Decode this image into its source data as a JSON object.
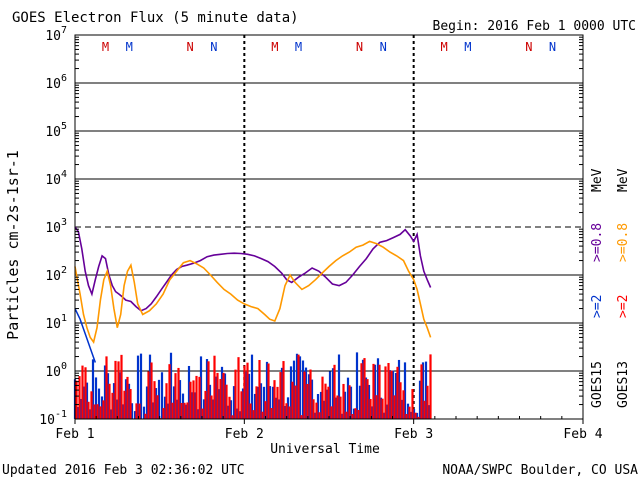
{
  "chart_data": {
    "type": "line",
    "title": "GOES Electron Flux (5 minute data)",
    "begin_label": "Begin: 2016 Feb 1 0000 UTC",
    "ylabel": "Particles cm-2s-1sr-1",
    "xlabel": "Universal Time",
    "updated_label": "Updated 2016 Feb  3 02:36:02 UTC",
    "source_label": "NOAA/SWPC Boulder, CO USA",
    "x_unit": "days since 2016 Feb 1 00:00 UTC",
    "xlim": [
      0,
      3
    ],
    "ylim_log10": [
      -1,
      7
    ],
    "x_ticks": [
      {
        "x": 0,
        "label": "Feb 1"
      },
      {
        "x": 1,
        "label": "Feb 2"
      },
      {
        "x": 2,
        "label": "Feb 3"
      },
      {
        "x": 3,
        "label": "Feb 4"
      }
    ],
    "y_ticks": [
      {
        "exp": -1,
        "base": "10",
        "sup": "-1"
      },
      {
        "exp": 0,
        "base": "10",
        "sup": "0"
      },
      {
        "exp": 1,
        "base": "10",
        "sup": "1"
      },
      {
        "exp": 2,
        "base": "10",
        "sup": "2"
      },
      {
        "exp": 3,
        "base": "10",
        "sup": "3"
      },
      {
        "exp": 4,
        "base": "10",
        "sup": "4"
      },
      {
        "exp": 5,
        "base": "10",
        "sup": "5"
      },
      {
        "exp": 6,
        "base": "10",
        "sup": "6"
      },
      {
        "exp": 7,
        "base": "10",
        "sup": "7"
      }
    ],
    "threshold_log10": 3,
    "markers": [
      {
        "x": 0.18,
        "label": "M",
        "color": "#cc0000"
      },
      {
        "x": 0.32,
        "label": "M",
        "color": "#0033cc"
      },
      {
        "x": 0.68,
        "label": "N",
        "color": "#cc0000"
      },
      {
        "x": 0.82,
        "label": "N",
        "color": "#0033cc"
      },
      {
        "x": 1.18,
        "label": "M",
        "color": "#cc0000"
      },
      {
        "x": 1.32,
        "label": "M",
        "color": "#0033cc"
      },
      {
        "x": 1.68,
        "label": "N",
        "color": "#cc0000"
      },
      {
        "x": 1.82,
        "label": "N",
        "color": "#0033cc"
      },
      {
        "x": 2.18,
        "label": "M",
        "color": "#cc0000"
      },
      {
        "x": 2.32,
        "label": "M",
        "color": "#0033cc"
      },
      {
        "x": 2.68,
        "label": "N",
        "color": "#cc0000"
      },
      {
        "x": 2.82,
        "label": "N",
        "color": "#0033cc"
      }
    ],
    "legend": [
      {
        "sat": "GOES15",
        "energy": ">=0.8 MeV",
        "color": "#660099"
      },
      {
        "sat": "GOES15",
        "energy": ">=2",
        "color": "#0033cc"
      },
      {
        "sat": "GOES13",
        "energy": ">=0.8 MeV",
        "color": "#ff9900"
      },
      {
        "sat": "GOES13",
        "energy": ">=2",
        "color": "#ff0000"
      }
    ],
    "legend_sat_labels": [
      "GOES15",
      "GOES13"
    ],
    "legend_energy_08": ">=0.8",
    "legend_energy_2": ">=2",
    "legend_unit": "MeV",
    "series": [
      {
        "name": "GOES15 >=0.8 MeV",
        "color": "#660099",
        "x": [
          0.0,
          0.02,
          0.04,
          0.06,
          0.08,
          0.1,
          0.12,
          0.14,
          0.16,
          0.18,
          0.2,
          0.22,
          0.24,
          0.26,
          0.28,
          0.3,
          0.33,
          0.36,
          0.39,
          0.42,
          0.45,
          0.48,
          0.51,
          0.54,
          0.57,
          0.6,
          0.63,
          0.66,
          0.7,
          0.74,
          0.78,
          0.82,
          0.86,
          0.9,
          0.94,
          0.98,
          1.02,
          1.06,
          1.1,
          1.14,
          1.18,
          1.22,
          1.25,
          1.28,
          1.32,
          1.36,
          1.4,
          1.44,
          1.48,
          1.52,
          1.56,
          1.6,
          1.64,
          1.68,
          1.72,
          1.76,
          1.8,
          1.84,
          1.88,
          1.92,
          1.95,
          1.98,
          2.0,
          2.02,
          2.04,
          2.06,
          2.08,
          2.1
        ],
        "y": [
          1000,
          800,
          350,
          120,
          60,
          40,
          80,
          150,
          250,
          220,
          100,
          60,
          45,
          40,
          35,
          30,
          28,
          22,
          18,
          20,
          25,
          35,
          50,
          70,
          100,
          130,
          150,
          160,
          175,
          200,
          240,
          260,
          270,
          280,
          285,
          280,
          270,
          250,
          220,
          190,
          150,
          110,
          80,
          70,
          90,
          110,
          140,
          120,
          90,
          65,
          60,
          70,
          100,
          150,
          220,
          350,
          480,
          520,
          600,
          700,
          880,
          650,
          500,
          700,
          250,
          120,
          80,
          55
        ]
      },
      {
        "name": "GOES13 >=0.8 MeV",
        "color": "#ff9900",
        "x": [
          0.0,
          0.03,
          0.05,
          0.07,
          0.09,
          0.11,
          0.13,
          0.15,
          0.17,
          0.19,
          0.21,
          0.23,
          0.25,
          0.27,
          0.29,
          0.31,
          0.33,
          0.35,
          0.37,
          0.4,
          0.44,
          0.48,
          0.52,
          0.56,
          0.6,
          0.64,
          0.68,
          0.72,
          0.76,
          0.8,
          0.84,
          0.88,
          0.92,
          0.96,
          1.0,
          1.04,
          1.08,
          1.12,
          1.15,
          1.18,
          1.21,
          1.24,
          1.27,
          1.3,
          1.34,
          1.38,
          1.42,
          1.46,
          1.5,
          1.54,
          1.58,
          1.62,
          1.66,
          1.7,
          1.74,
          1.78,
          1.82,
          1.86,
          1.9,
          1.94,
          1.97,
          2.0,
          2.02,
          2.04,
          2.06,
          2.08,
          2.1
        ],
        "y": [
          150,
          40,
          15,
          8,
          5,
          4,
          8,
          30,
          80,
          120,
          60,
          20,
          8,
          15,
          60,
          120,
          160,
          70,
          25,
          15,
          18,
          25,
          40,
          80,
          120,
          180,
          200,
          170,
          140,
          100,
          70,
          50,
          40,
          30,
          25,
          22,
          20,
          15,
          12,
          11,
          20,
          60,
          100,
          70,
          50,
          60,
          80,
          110,
          150,
          200,
          250,
          300,
          380,
          420,
          500,
          450,
          380,
          300,
          250,
          200,
          120,
          80,
          50,
          25,
          12,
          8,
          5
        ]
      }
    ],
    "bars": [
      {
        "name": "GOES15 >=2 MeV",
        "color": "#0033cc",
        "range_log10": [
          -0.9,
          0.4
        ],
        "seed": 7
      },
      {
        "name": "GOES13 >=2 MeV",
        "color": "#ff0000",
        "range_log10": [
          -1.0,
          0.35
        ],
        "seed": 19
      }
    ],
    "bars_start_x": 0.0,
    "bars_end_x": 2.1,
    "early_blue_segment": {
      "x": [
        0.0,
        0.03,
        0.06,
        0.09,
        0.12
      ],
      "y": [
        20,
        12,
        6,
        3,
        1.5
      ]
    }
  }
}
